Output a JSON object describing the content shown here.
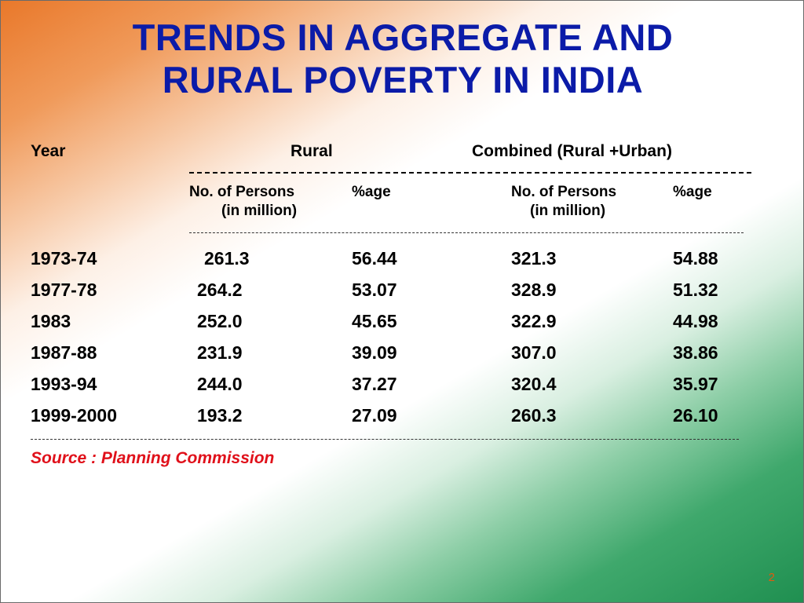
{
  "title": {
    "line1": "TRENDS IN AGGREGATE AND",
    "line2": "RURAL POVERTY IN INDIA"
  },
  "table": {
    "header": {
      "year": "Year",
      "rural": "Rural",
      "combined": "Combined (Rural +Urban)"
    },
    "subheader": {
      "rural_persons": "No. of Persons",
      "rural_persons_unit": "(in million)",
      "rural_pct": "%age",
      "combined_persons": "No. of Persons",
      "combined_persons_unit": "(in million)",
      "combined_pct": "%age"
    },
    "rows": [
      {
        "year": "1973-74",
        "rural_persons": "261.3",
        "rural_pct": "56.44",
        "combined_persons": "321.3",
        "combined_pct": "54.88"
      },
      {
        "year": "1977-78",
        "rural_persons": "264.2",
        "rural_pct": "53.07",
        "combined_persons": "328.9",
        "combined_pct": "51.32"
      },
      {
        "year": "1983",
        "rural_persons": "252.0",
        "rural_pct": "45.65",
        "combined_persons": "322.9",
        "combined_pct": "44.98"
      },
      {
        "year": "1987-88",
        "rural_persons": "231.9",
        "rural_pct": "39.09",
        "combined_persons": "307.0",
        "combined_pct": "38.86"
      },
      {
        "year": "1993-94",
        "rural_persons": "244.0",
        "rural_pct": "37.27",
        "combined_persons": "320.4",
        "combined_pct": "35.97"
      },
      {
        "year": "1999-2000",
        "rural_persons": "193.2",
        "rural_pct": "27.09",
        "combined_persons": "260.3",
        "combined_pct": "26.10"
      }
    ]
  },
  "source": "Source : Planning Commission",
  "page_number": "2",
  "colors": {
    "title": "#0b1ba8",
    "source": "#e0101a",
    "page_number": "#e05a10",
    "saffron": "#e9782a",
    "green": "#1f8f50"
  }
}
